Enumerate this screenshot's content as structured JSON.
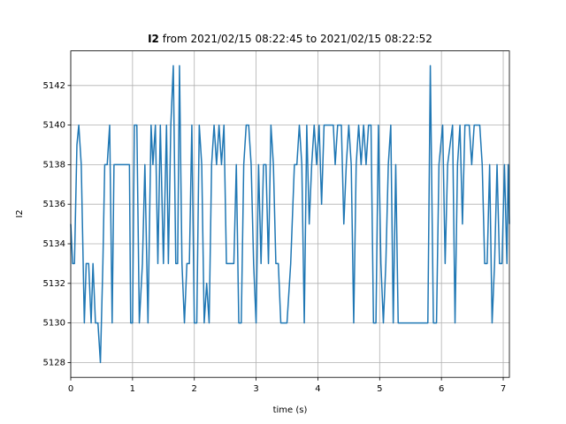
{
  "chart_data": {
    "type": "line",
    "title": [
      "I2",
      "from 2021/02/15 08:22:45 to 2021/02/15 08:22:52"
    ],
    "xlabel": "time (s)",
    "ylabel": "I2",
    "xlim": [
      0,
      7.1
    ],
    "ylim": [
      5127.25,
      5143.75
    ],
    "xticks": [
      0,
      1,
      2,
      3,
      4,
      5,
      6,
      7
    ],
    "yticks": [
      5128,
      5130,
      5132,
      5134,
      5136,
      5138,
      5140,
      5142
    ],
    "grid": true,
    "x": [
      0,
      0.03,
      0.06,
      0.1,
      0.13,
      0.17,
      0.22,
      0.25,
      0.29,
      0.33,
      0.36,
      0.4,
      0.44,
      0.48,
      0.52,
      0.55,
      0.59,
      0.63,
      0.67,
      0.7,
      0.95,
      0.97,
      1.0,
      1.03,
      1.07,
      1.11,
      1.16,
      1.2,
      1.25,
      1.3,
      1.33,
      1.37,
      1.41,
      1.45,
      1.5,
      1.55,
      1.58,
      1.62,
      1.66,
      1.7,
      1.73,
      1.76,
      1.8,
      1.84,
      1.88,
      1.92,
      1.96,
      2.0,
      2.04,
      2.08,
      2.12,
      2.16,
      2.2,
      2.24,
      2.28,
      2.32,
      2.36,
      2.4,
      2.44,
      2.48,
      2.52,
      2.64,
      2.68,
      2.72,
      2.76,
      2.8,
      2.84,
      2.88,
      2.92,
      2.96,
      3.0,
      3.04,
      3.08,
      3.12,
      3.16,
      3.2,
      3.24,
      3.28,
      3.32,
      3.36,
      3.4,
      3.44,
      3.5,
      3.56,
      3.62,
      3.66,
      3.7,
      3.74,
      3.78,
      3.82,
      3.86,
      3.9,
      3.94,
      3.98,
      4.02,
      4.06,
      4.1,
      4.25,
      4.28,
      4.32,
      4.38,
      4.42,
      4.46,
      4.5,
      4.54,
      4.58,
      4.62,
      4.66,
      4.7,
      4.74,
      4.78,
      4.82,
      4.86,
      4.9,
      4.94,
      4.98,
      5.02,
      5.06,
      5.1,
      5.14,
      5.18,
      5.22,
      5.26,
      5.3,
      5.36,
      5.42,
      5.78,
      5.82,
      5.87,
      5.92,
      5.96,
      5.99,
      6.02,
      6.06,
      6.1,
      6.14,
      6.18,
      6.22,
      6.26,
      6.3,
      6.34,
      6.38,
      6.45,
      6.49,
      6.53,
      6.62,
      6.66,
      6.7,
      6.74,
      6.78,
      6.82,
      6.86,
      6.9,
      6.94,
      6.98,
      7.02,
      7.06,
      7.08,
      7.1
    ],
    "series": [
      {
        "name": "I2",
        "color": "#1f77b4",
        "values": [
          5135,
          5133,
          5133,
          5139,
          5140,
          5138,
          5130,
          5133,
          5133,
          5130,
          5133,
          5130,
          5130,
          5128,
          5133,
          5138,
          5138,
          5140,
          5130,
          5138,
          5138,
          5130,
          5130,
          5140,
          5140,
          5130,
          5133,
          5138,
          5130,
          5140,
          5138,
          5140,
          5133,
          5140,
          5133,
          5140,
          5133,
          5140,
          5143,
          5133,
          5133,
          5143,
          5133,
          5130,
          5133,
          5133,
          5140,
          5130,
          5130,
          5140,
          5138,
          5130,
          5132,
          5130,
          5138,
          5140,
          5138,
          5140,
          5138,
          5140,
          5133,
          5133,
          5138,
          5130,
          5130,
          5138,
          5140,
          5140,
          5138,
          5133,
          5130,
          5138,
          5133,
          5138,
          5138,
          5133,
          5140,
          5138,
          5133,
          5133,
          5130,
          5130,
          5130,
          5133,
          5138,
          5138,
          5140,
          5138,
          5130,
          5140,
          5135,
          5138,
          5140,
          5138,
          5140,
          5136,
          5140,
          5140,
          5138,
          5140,
          5140,
          5135,
          5138,
          5140,
          5138,
          5130,
          5138,
          5140,
          5138,
          5140,
          5138,
          5140,
          5140,
          5130,
          5130,
          5140,
          5133,
          5130,
          5133,
          5138,
          5140,
          5130,
          5138,
          5130,
          5130,
          5130,
          5130,
          5143,
          5130,
          5130,
          5138,
          5139,
          5140,
          5133,
          5138,
          5139,
          5140,
          5130,
          5138,
          5140,
          5135,
          5140,
          5140,
          5138,
          5140,
          5140,
          5138,
          5133,
          5133,
          5138,
          5130,
          5133,
          5138,
          5133,
          5133,
          5138,
          5133,
          5138,
          5135
        ]
      }
    ]
  }
}
